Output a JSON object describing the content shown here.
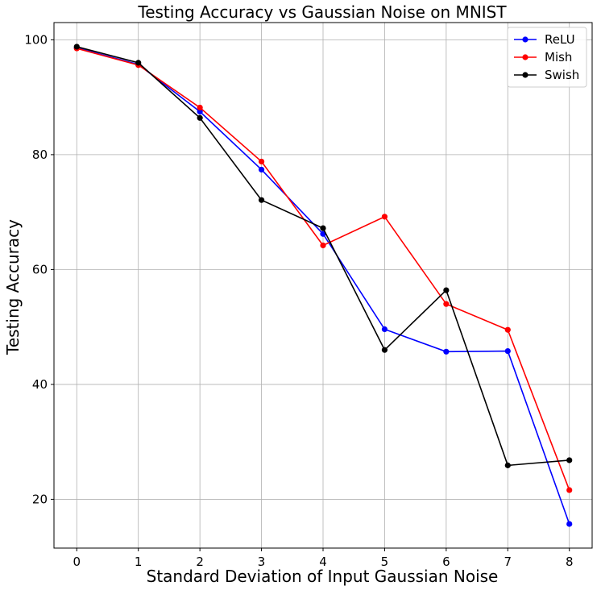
{
  "chart_data": {
    "type": "line",
    "title": "Testing Accuracy vs Gaussian Noise on MNIST",
    "xlabel": "Standard Deviation of Input Gaussian Noise",
    "ylabel": "Testing Accuracy",
    "x": [
      0,
      1,
      2,
      3,
      4,
      5,
      6,
      7,
      8
    ],
    "xlim": [
      -0.37,
      8.37
    ],
    "ylim": [
      11.5,
      103.0
    ],
    "xticks": [
      0,
      1,
      2,
      3,
      4,
      5,
      6,
      7,
      8
    ],
    "yticks": [
      20,
      40,
      60,
      80,
      100
    ],
    "grid": true,
    "legend_position": "top-right",
    "series": [
      {
        "name": "ReLU",
        "color": "#0000ff",
        "values": [
          98.6,
          95.7,
          87.5,
          77.4,
          66.2,
          49.6,
          45.7,
          45.8,
          15.7
        ]
      },
      {
        "name": "Mish",
        "color": "#ff0000",
        "values": [
          98.5,
          95.6,
          88.2,
          78.8,
          64.2,
          69.2,
          54.0,
          49.5,
          21.6
        ]
      },
      {
        "name": "Swish",
        "color": "#000000",
        "values": [
          98.8,
          96.0,
          86.4,
          72.1,
          67.2,
          46.0,
          56.4,
          25.9,
          26.8
        ]
      }
    ]
  }
}
